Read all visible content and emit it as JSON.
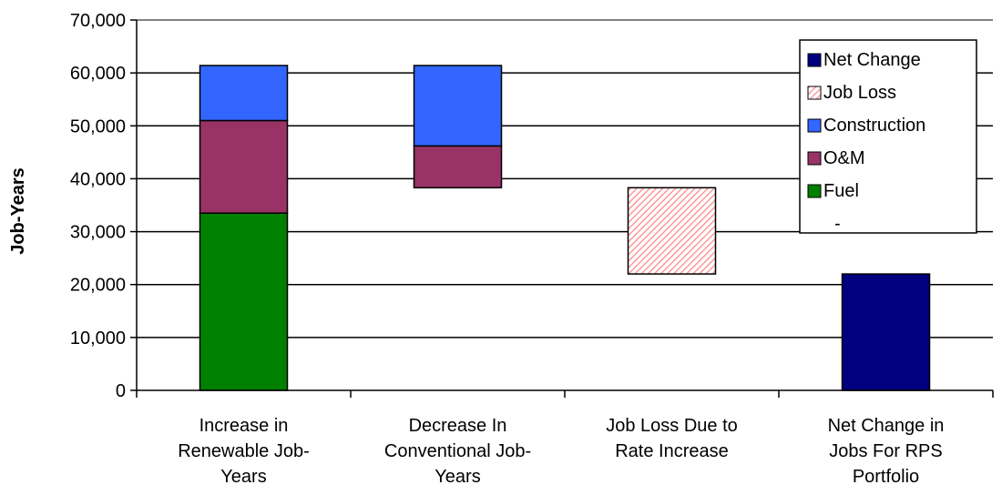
{
  "chart_data": {
    "type": "bar",
    "subtype": "waterfall-stacked",
    "ylabel": "Job-Years",
    "ylim": [
      0,
      70000
    ],
    "yticks": [
      0,
      10000,
      20000,
      30000,
      40000,
      50000,
      60000,
      70000
    ],
    "ytick_labels": [
      "0",
      "10,000",
      "20,000",
      "30,000",
      "40,000",
      "50,000",
      "60,000",
      "70,000"
    ],
    "grid": true,
    "legend_position": "top-right",
    "categories": [
      [
        "Increase in",
        "Renewable Job-",
        "Years"
      ],
      [
        "Decrease In",
        "Conventional Job-",
        "Years"
      ],
      [
        "Job Loss Due to",
        "Rate Increase"
      ],
      [
        "Net Change in",
        "Jobs For RPS",
        "Portfolio"
      ]
    ],
    "legend": [
      "Net Change",
      "Job Loss",
      "Construction",
      "O&M",
      "Fuel",
      "-"
    ],
    "series": [
      {
        "name": "Fuel",
        "color": "#008000",
        "segments": [
          [
            0,
            33500
          ],
          null,
          null,
          null
        ]
      },
      {
        "name": "O&M",
        "color": "#993366",
        "segments": [
          [
            33500,
            51000
          ],
          [
            38300,
            46200
          ],
          null,
          null
        ]
      },
      {
        "name": "Construction",
        "color": "#3366FF",
        "segments": [
          [
            51000,
            61400
          ],
          [
            46200,
            61400
          ],
          null,
          null
        ]
      },
      {
        "name": "Job Loss",
        "color": "#FF9999",
        "pattern": "hatch",
        "segments": [
          null,
          null,
          [
            22000,
            38300
          ],
          null
        ]
      },
      {
        "name": "Net Change",
        "color": "#000080",
        "segments": [
          null,
          null,
          null,
          [
            0,
            22000
          ]
        ]
      }
    ]
  }
}
